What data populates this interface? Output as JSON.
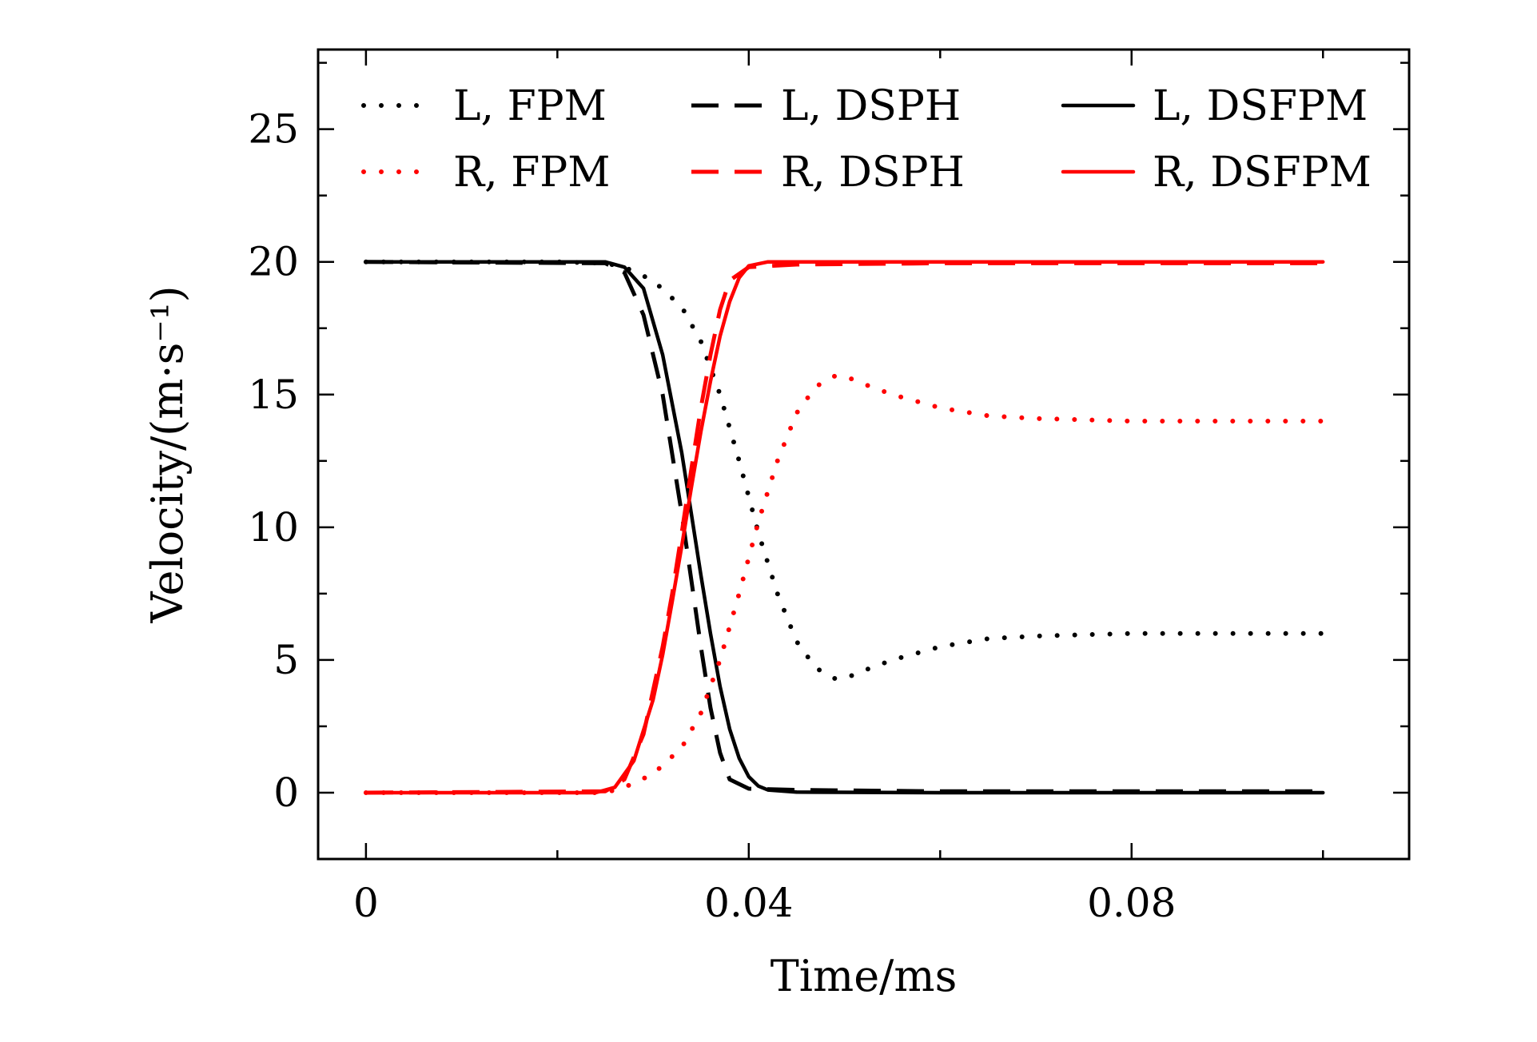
{
  "chart_data": {
    "type": "line",
    "title": "",
    "xlabel": "Time/ms",
    "ylabel": "Velocity/(m·s⁻¹)",
    "xlim": [
      -0.005,
      0.109
    ],
    "ylim": [
      -2.5,
      28
    ],
    "x_ticks": [
      {
        "value": 0,
        "label": "0"
      },
      {
        "value": 0.04,
        "label": "0.04"
      },
      {
        "value": 0.08,
        "label": "0.08"
      }
    ],
    "y_ticks": [
      {
        "value": 0,
        "label": "0"
      },
      {
        "value": 5,
        "label": "5"
      },
      {
        "value": 10,
        "label": "10"
      },
      {
        "value": 15,
        "label": "15"
      },
      {
        "value": 20,
        "label": "20"
      },
      {
        "value": 25,
        "label": "25"
      }
    ],
    "grid": false,
    "legend_position": "top",
    "series": [
      {
        "name": "L, FPM",
        "color": "#000000",
        "style": "dotted",
        "x": [
          0,
          0.02,
          0.025,
          0.027,
          0.03,
          0.033,
          0.035,
          0.037,
          0.039,
          0.041,
          0.043,
          0.045,
          0.047,
          0.049,
          0.05,
          0.052,
          0.055,
          0.06,
          0.065,
          0.07,
          0.08,
          0.09,
          0.1
        ],
        "y": [
          20,
          20,
          19.95,
          19.8,
          19.3,
          18.3,
          17.0,
          15.0,
          12.5,
          9.8,
          7.5,
          5.7,
          4.7,
          4.3,
          4.3,
          4.6,
          5.0,
          5.5,
          5.8,
          5.9,
          6.0,
          6.0,
          6.0
        ]
      },
      {
        "name": "L, DSPH",
        "color": "#000000",
        "style": "dashed",
        "x": [
          0,
          0.025,
          0.027,
          0.029,
          0.031,
          0.033,
          0.034,
          0.035,
          0.036,
          0.037,
          0.038,
          0.04,
          0.045,
          0.06,
          0.08,
          0.1
        ],
        "y": [
          20,
          19.95,
          19.6,
          18.0,
          15.0,
          10.5,
          8.0,
          5.5,
          3.2,
          1.5,
          0.5,
          0.15,
          0.1,
          0.05,
          0.05,
          0.05
        ]
      },
      {
        "name": "L, DSFPM",
        "color": "#000000",
        "style": "solid",
        "x": [
          0,
          0.025,
          0.027,
          0.029,
          0.031,
          0.033,
          0.034,
          0.035,
          0.036,
          0.037,
          0.038,
          0.039,
          0.04,
          0.041,
          0.042,
          0.045,
          0.06,
          0.08,
          0.1
        ],
        "y": [
          20,
          20,
          19.8,
          19.0,
          16.5,
          12.8,
          10.5,
          8.2,
          6.0,
          4.0,
          2.4,
          1.3,
          0.6,
          0.25,
          0.1,
          0.02,
          0.0,
          0.0,
          0.0
        ]
      },
      {
        "name": "R, FPM",
        "color": "#ff0000",
        "style": "dotted",
        "x": [
          0,
          0.025,
          0.027,
          0.03,
          0.033,
          0.035,
          0.037,
          0.039,
          0.041,
          0.043,
          0.045,
          0.047,
          0.049,
          0.05,
          0.052,
          0.055,
          0.06,
          0.065,
          0.07,
          0.08,
          0.09,
          0.1
        ],
        "y": [
          0,
          0,
          0.2,
          0.7,
          1.7,
          3.0,
          5.0,
          7.5,
          10.2,
          12.5,
          14.3,
          15.3,
          15.7,
          15.7,
          15.4,
          15.0,
          14.5,
          14.2,
          14.1,
          14.0,
          14.0,
          14.0
        ]
      },
      {
        "name": "R, DSPH",
        "color": "#ff0000",
        "style": "dashed",
        "x": [
          0,
          0.025,
          0.027,
          0.029,
          0.031,
          0.032,
          0.033,
          0.034,
          0.035,
          0.036,
          0.037,
          0.038,
          0.04,
          0.045,
          0.06,
          0.08,
          0.1
        ],
        "y": [
          0,
          0.05,
          0.5,
          2.2,
          5.5,
          7.5,
          9.8,
          12.2,
          14.5,
          16.5,
          18.2,
          19.3,
          19.8,
          19.9,
          19.95,
          19.95,
          19.95
        ]
      },
      {
        "name": "R, DSFPM",
        "color": "#ff0000",
        "style": "solid",
        "x": [
          0,
          0.024,
          0.026,
          0.028,
          0.03,
          0.031,
          0.032,
          0.033,
          0.034,
          0.035,
          0.036,
          0.037,
          0.038,
          0.039,
          0.04,
          0.042,
          0.045,
          0.06,
          0.08,
          0.1
        ],
        "y": [
          0,
          0,
          0.2,
          1.2,
          3.5,
          5.2,
          7.2,
          9.3,
          11.5,
          13.6,
          15.5,
          17.2,
          18.5,
          19.4,
          19.85,
          20.0,
          20.0,
          20.0,
          20.0,
          20.0
        ]
      }
    ]
  }
}
